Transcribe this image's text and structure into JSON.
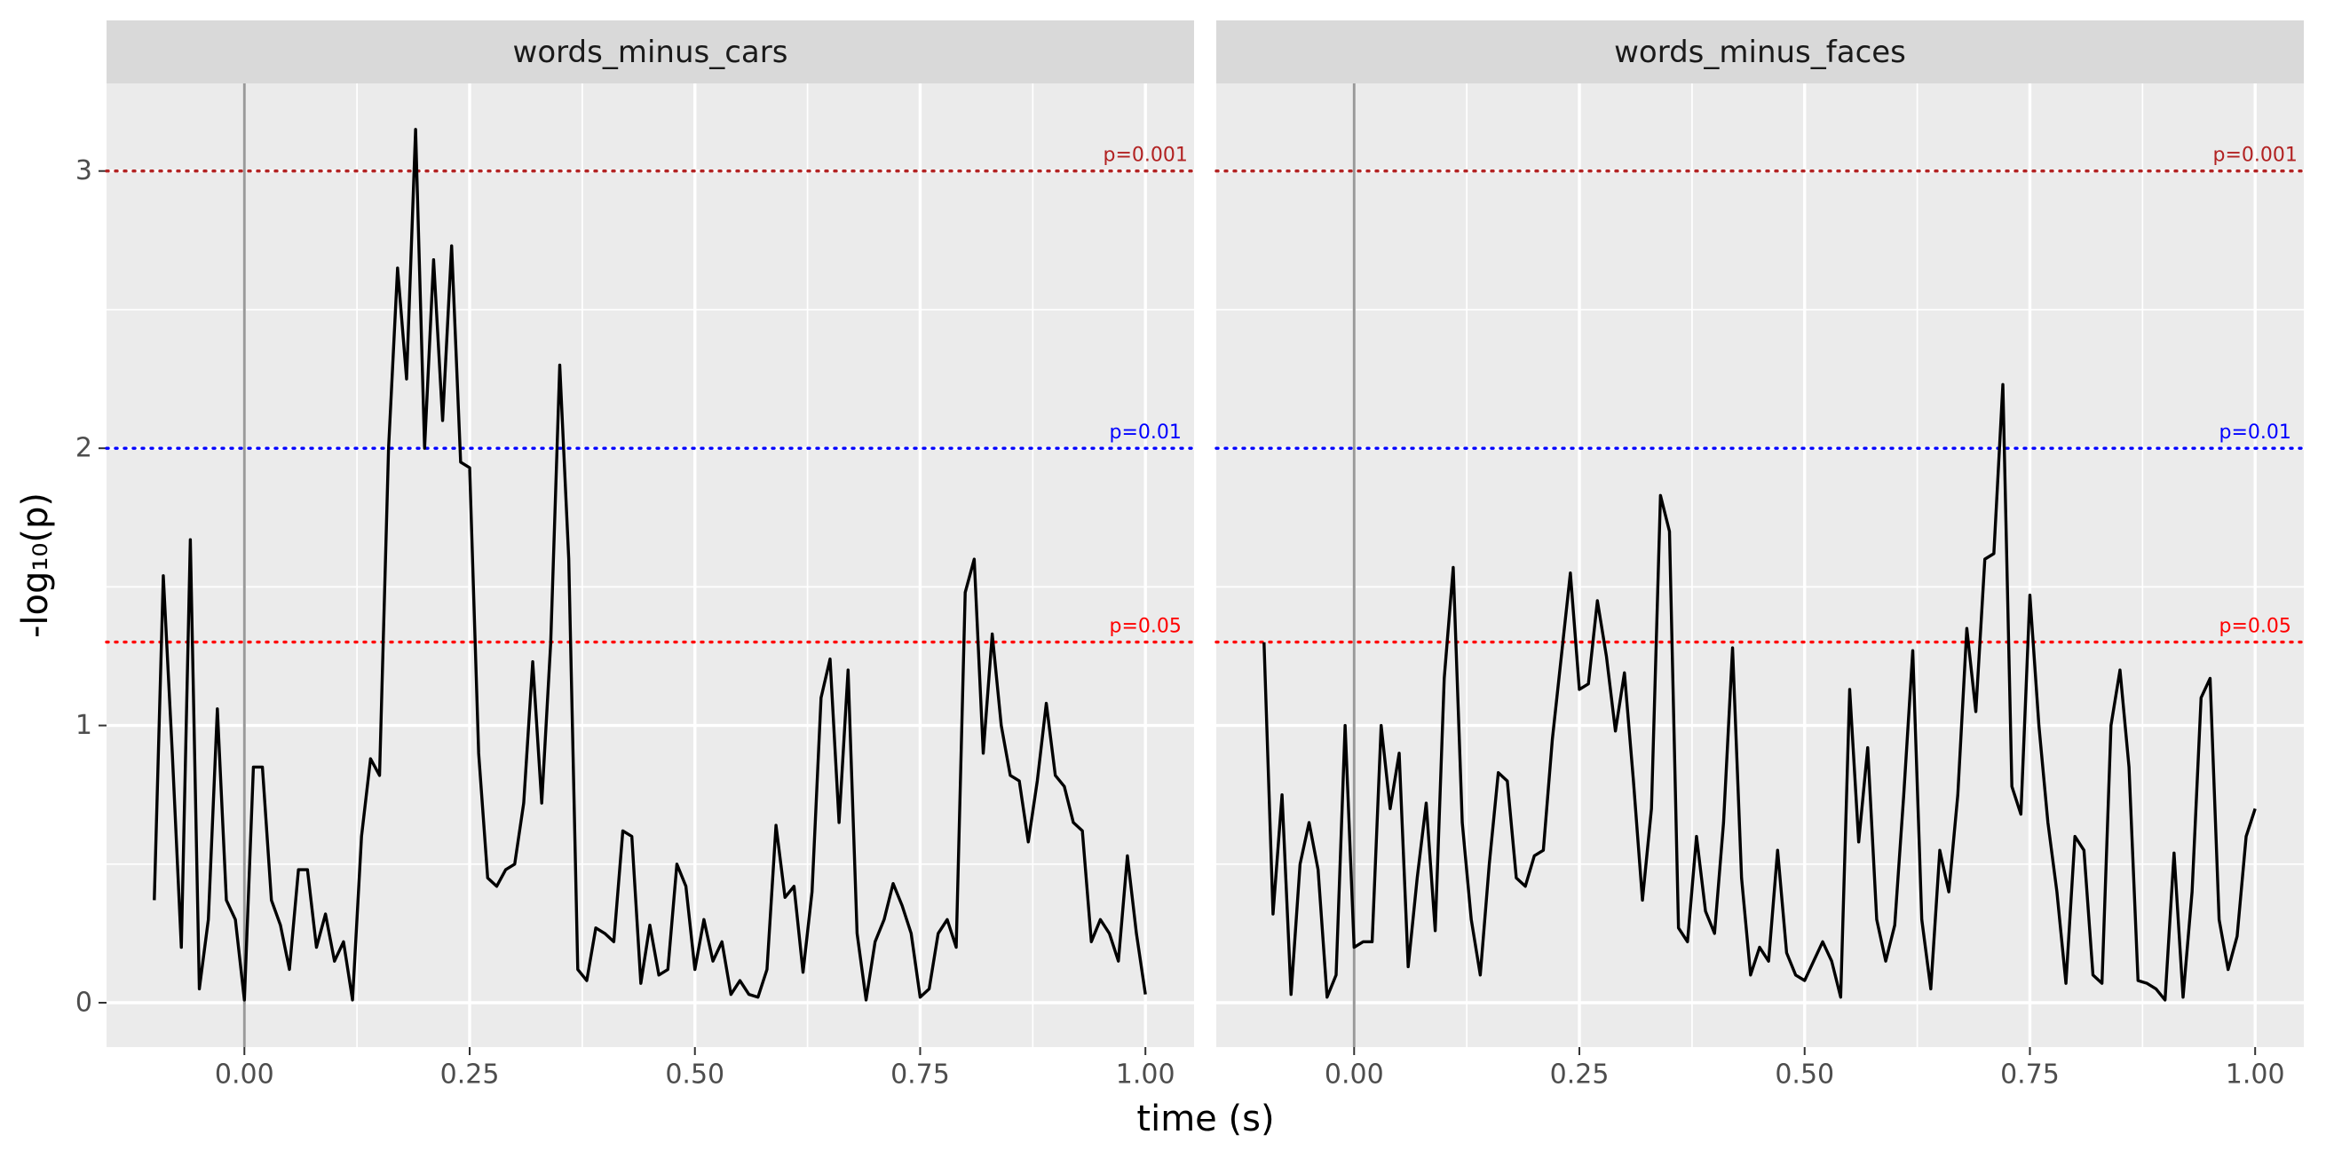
{
  "chart_data": {
    "type": "line",
    "x_label": "time (s)",
    "y_label": "-log₁₀(p)",
    "xlim": [
      -0.153,
      1.054
    ],
    "ylim": [
      -0.16,
      3.316
    ],
    "xticks": [
      {
        "value": 0,
        "label": "0.00"
      },
      {
        "value": 0.25,
        "label": "0.25"
      },
      {
        "value": 0.5,
        "label": "0.50"
      },
      {
        "value": 0.75,
        "label": "0.75"
      },
      {
        "value": 1,
        "label": "1.00"
      }
    ],
    "yticks": [
      0,
      1,
      2,
      3
    ],
    "grid": true,
    "line_color": "#000000",
    "vline": {
      "value": 0,
      "color": "#999999"
    },
    "hlines": [
      {
        "value": 3,
        "label": "p=0.001",
        "color": "#b22222"
      },
      {
        "value": 2,
        "label": "p=0.01",
        "color": "#0000ff"
      },
      {
        "value": 1.301,
        "label": "p=0.05",
        "color": "#ff0000"
      }
    ],
    "x": [
      -0.1,
      -0.09,
      -0.08,
      -0.07,
      -0.06,
      -0.05,
      -0.04,
      -0.03,
      -0.02,
      -0.01,
      0,
      0.01,
      0.02,
      0.03,
      0.04,
      0.05,
      0.06,
      0.07,
      0.08,
      0.09,
      0.1,
      0.11,
      0.12,
      0.13,
      0.14,
      0.15,
      0.16,
      0.17,
      0.18,
      0.19,
      0.2,
      0.21,
      0.22,
      0.23,
      0.24,
      0.25,
      0.26,
      0.27,
      0.28,
      0.29,
      0.3,
      0.31,
      0.32,
      0.33,
      0.34,
      0.35,
      0.36,
      0.37,
      0.38,
      0.39,
      0.4,
      0.41,
      0.42,
      0.43,
      0.44,
      0.45,
      0.46,
      0.47,
      0.48,
      0.49,
      0.5,
      0.51,
      0.52,
      0.53,
      0.54,
      0.55,
      0.56,
      0.57,
      0.58,
      0.59,
      0.6,
      0.61,
      0.62,
      0.63,
      0.64,
      0.65,
      0.66,
      0.67,
      0.68,
      0.69,
      0.7,
      0.71,
      0.72,
      0.73,
      0.74,
      0.75,
      0.76,
      0.77,
      0.78,
      0.79,
      0.8,
      0.81,
      0.82,
      0.83,
      0.84,
      0.85,
      0.86,
      0.87,
      0.88,
      0.89,
      0.9,
      0.91,
      0.92,
      0.93,
      0.94,
      0.95,
      0.96,
      0.97,
      0.98,
      0.99,
      1
    ],
    "facets": [
      {
        "title": "words_minus_cars",
        "values": [
          0.37,
          1.54,
          0.9,
          0.2,
          1.67,
          0.05,
          0.3,
          1.06,
          0.37,
          0.3,
          0.01,
          0.85,
          0.85,
          0.37,
          0.28,
          0.12,
          0.48,
          0.48,
          0.2,
          0.32,
          0.15,
          0.22,
          0.01,
          0.6,
          0.88,
          0.82,
          2.0,
          2.65,
          2.25,
          3.15,
          2.0,
          2.68,
          2.1,
          2.73,
          1.95,
          1.93,
          0.9,
          0.45,
          0.42,
          0.48,
          0.5,
          0.72,
          1.23,
          0.72,
          1.3,
          2.3,
          1.6,
          0.12,
          0.08,
          0.27,
          0.25,
          0.22,
          0.62,
          0.6,
          0.07,
          0.28,
          0.1,
          0.12,
          0.5,
          0.42,
          0.12,
          0.3,
          0.15,
          0.22,
          0.03,
          0.08,
          0.03,
          0.02,
          0.12,
          0.64,
          0.38,
          0.42,
          0.11,
          0.4,
          1.1,
          1.24,
          0.65,
          1.2,
          0.25,
          0.01,
          0.22,
          0.3,
          0.43,
          0.35,
          0.25,
          0.02,
          0.05,
          0.25,
          0.3,
          0.2,
          1.48,
          1.6,
          0.9,
          1.33,
          1.0,
          0.82,
          0.8,
          0.58,
          0.8,
          1.08,
          0.82,
          0.78,
          0.65,
          0.62,
          0.22,
          0.3,
          0.25,
          0.15,
          0.53,
          0.25,
          0.03
        ]
      },
      {
        "title": "words_minus_faces",
        "values": [
          1.3,
          0.32,
          0.75,
          0.03,
          0.5,
          0.65,
          0.48,
          0.02,
          0.1,
          1.0,
          0.2,
          0.22,
          0.22,
          1.0,
          0.7,
          0.9,
          0.13,
          0.45,
          0.72,
          0.26,
          1.17,
          1.57,
          0.65,
          0.3,
          0.1,
          0.5,
          0.83,
          0.8,
          0.45,
          0.42,
          0.53,
          0.55,
          0.95,
          1.25,
          1.55,
          1.13,
          1.15,
          1.45,
          1.25,
          0.98,
          1.19,
          0.8,
          0.37,
          0.7,
          1.83,
          1.7,
          0.27,
          0.22,
          0.6,
          0.33,
          0.25,
          0.65,
          1.28,
          0.45,
          0.1,
          0.2,
          0.15,
          0.55,
          0.18,
          0.1,
          0.08,
          0.15,
          0.22,
          0.15,
          0.02,
          1.13,
          0.58,
          0.92,
          0.3,
          0.15,
          0.28,
          0.75,
          1.27,
          0.3,
          0.05,
          0.55,
          0.4,
          0.75,
          1.35,
          1.05,
          1.6,
          1.62,
          2.23,
          0.78,
          0.68,
          1.47,
          1.0,
          0.65,
          0.4,
          0.07,
          0.6,
          0.55,
          0.1,
          0.07,
          1.0,
          1.2,
          0.85,
          0.08,
          0.07,
          0.05,
          0.01,
          0.54,
          0.02,
          0.4,
          1.1,
          1.17,
          0.3,
          0.12,
          0.24,
          0.6,
          0.7
        ]
      }
    ]
  }
}
